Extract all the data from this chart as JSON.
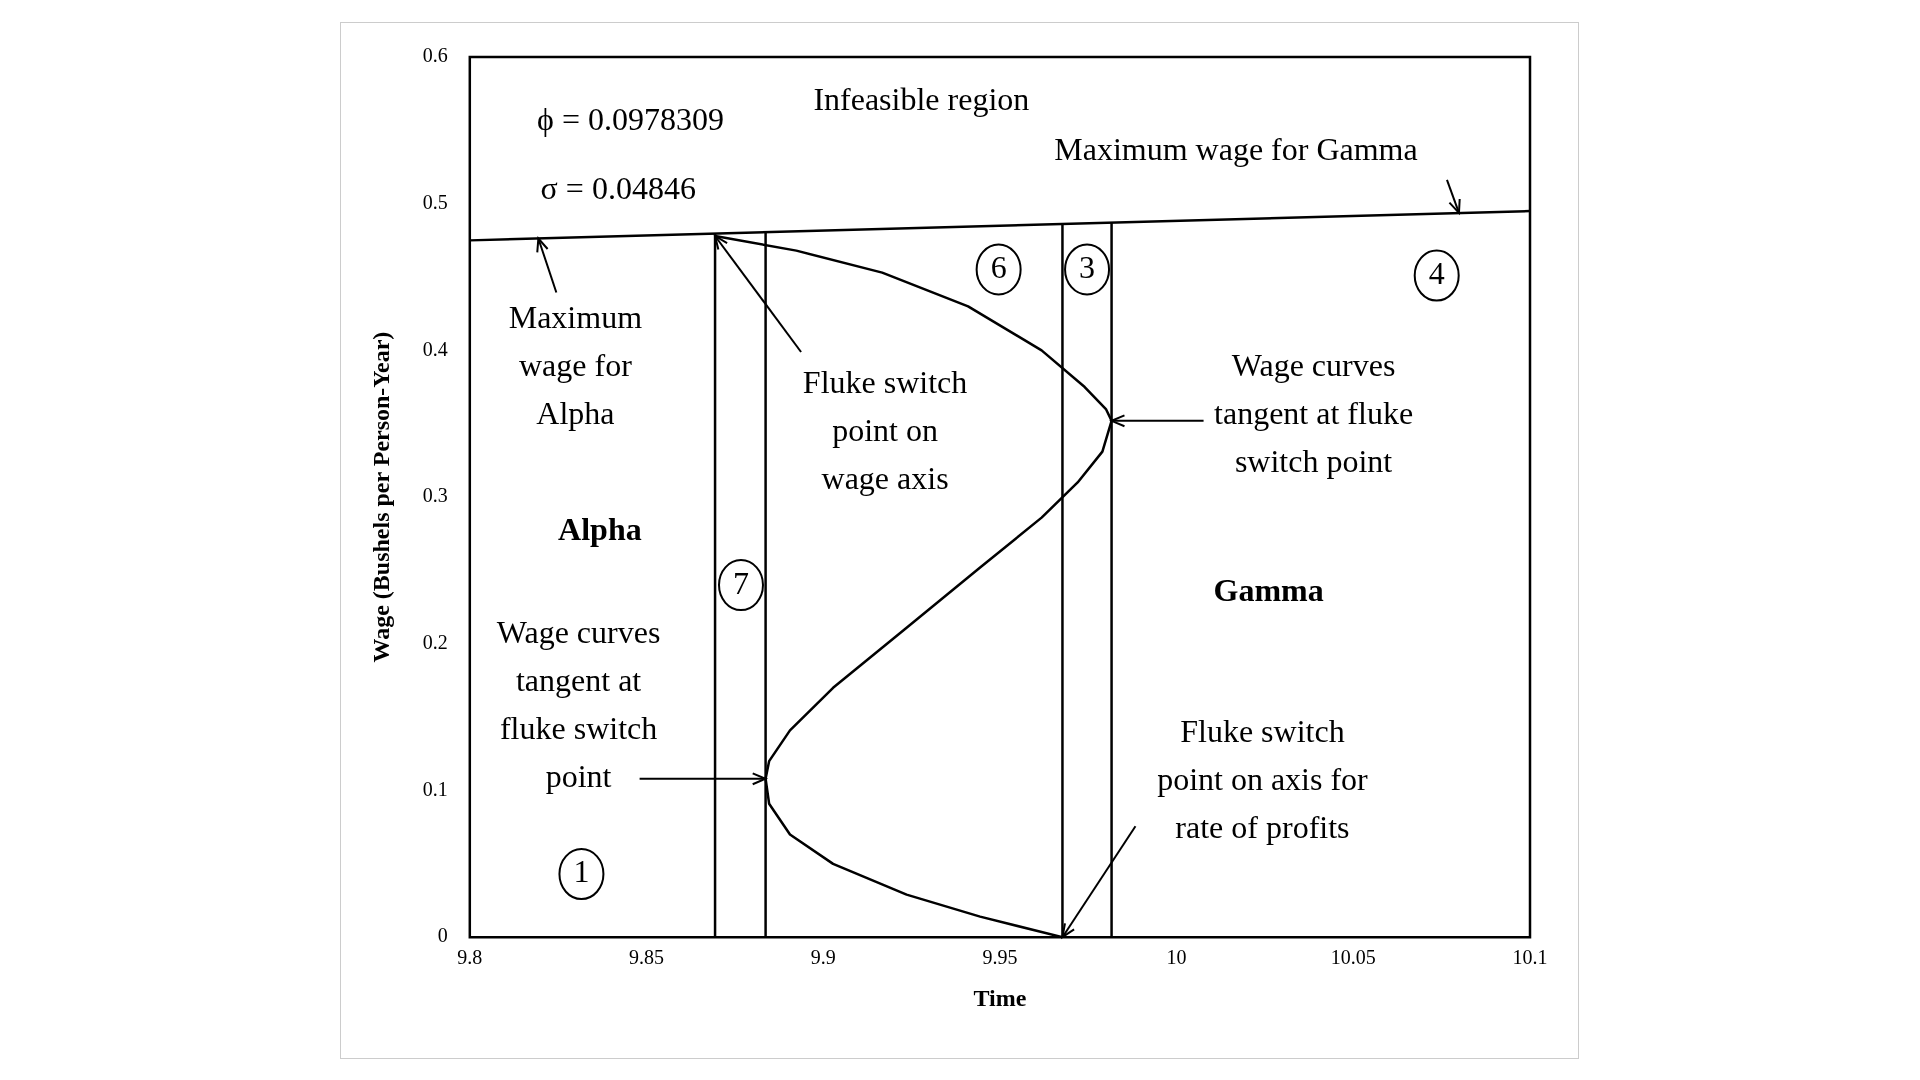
{
  "chart_data": {
    "type": "line",
    "xlabel": "Time",
    "ylabel": "Wage (Bushels per Person-Year)",
    "xlim": [
      9.8,
      10.1
    ],
    "xticks": [
      9.8,
      9.85,
      9.9,
      9.95,
      10,
      10.05,
      10.1
    ],
    "ylim": [
      0,
      0.6
    ],
    "yticks": [
      0,
      0.1,
      0.2,
      0.3,
      0.4,
      0.5,
      0.6
    ],
    "grid": false,
    "legend": false,
    "marker": "none",
    "line_style": "solid",
    "series": [
      {
        "color": "#000000",
        "x": [
          9.8,
          10.1
        ],
        "values": [
          0.475,
          0.495
        ]
      },
      {
        "color": "#000000",
        "x": [
          9.8694,
          9.8694
        ],
        "values": [
          0,
          0.4796
        ]
      },
      {
        "color": "#000000",
        "x": [
          9.8837,
          9.8837
        ],
        "values": [
          0,
          0.4806
        ]
      },
      {
        "color": "#000000",
        "x": [
          9.9677,
          9.9677
        ],
        "values": [
          0,
          0.4865
        ]
      },
      {
        "color": "#000000",
        "x": [
          9.9816,
          9.9816
        ],
        "values": [
          0,
          0.4874
        ]
      },
      {
        "color": "#000000",
        "x": [
          9.8694,
          9.8924,
          9.9167,
          9.941,
          9.9618,
          9.974,
          9.98,
          9.9816,
          9.979,
          9.972,
          9.9618,
          9.9444,
          9.9236,
          9.9028,
          9.8906,
          9.8847,
          9.8837,
          9.8847,
          9.8906,
          9.9028,
          9.9236,
          9.9444,
          9.9677
        ],
        "values": [
          0.478,
          0.468,
          0.453,
          0.43,
          0.4,
          0.375,
          0.36,
          0.352,
          0.331,
          0.31,
          0.286,
          0.252,
          0.211,
          0.17,
          0.141,
          0.12,
          0.108,
          0.091,
          0.07,
          0.05,
          0.029,
          0.014,
          0
        ]
      }
    ],
    "annotations": [
      "ϕ = 0.0978309",
      "σ = 0.04846",
      "Infeasible region",
      {
        "text": "Maximum wage for Gamma",
        "x": 10.0799,
        "y": 0.4937
      },
      {
        "text": "Maximum\nwage for\nAlpha",
        "x": 9.8194,
        "y": 0.4763
      },
      {
        "text": "Fluke switch\npoint on\nwage axis",
        "x": 9.8694,
        "y": 0.478
      },
      {
        "text": "Wage curves\ntangent at fluke\nswitch point",
        "x": 9.9816,
        "y": 0.352
      },
      "Alpha",
      "Gamma",
      {
        "text": "Wage curves\ntangent at\nfluke switch\npoint",
        "x": 9.8837,
        "y": 0.108
      },
      {
        "text": "Fluke switch\npoint on axis for\nrate of profits",
        "x": 9.9677,
        "y": 0
      },
      "1",
      "7",
      "6",
      "3",
      "4"
    ]
  }
}
